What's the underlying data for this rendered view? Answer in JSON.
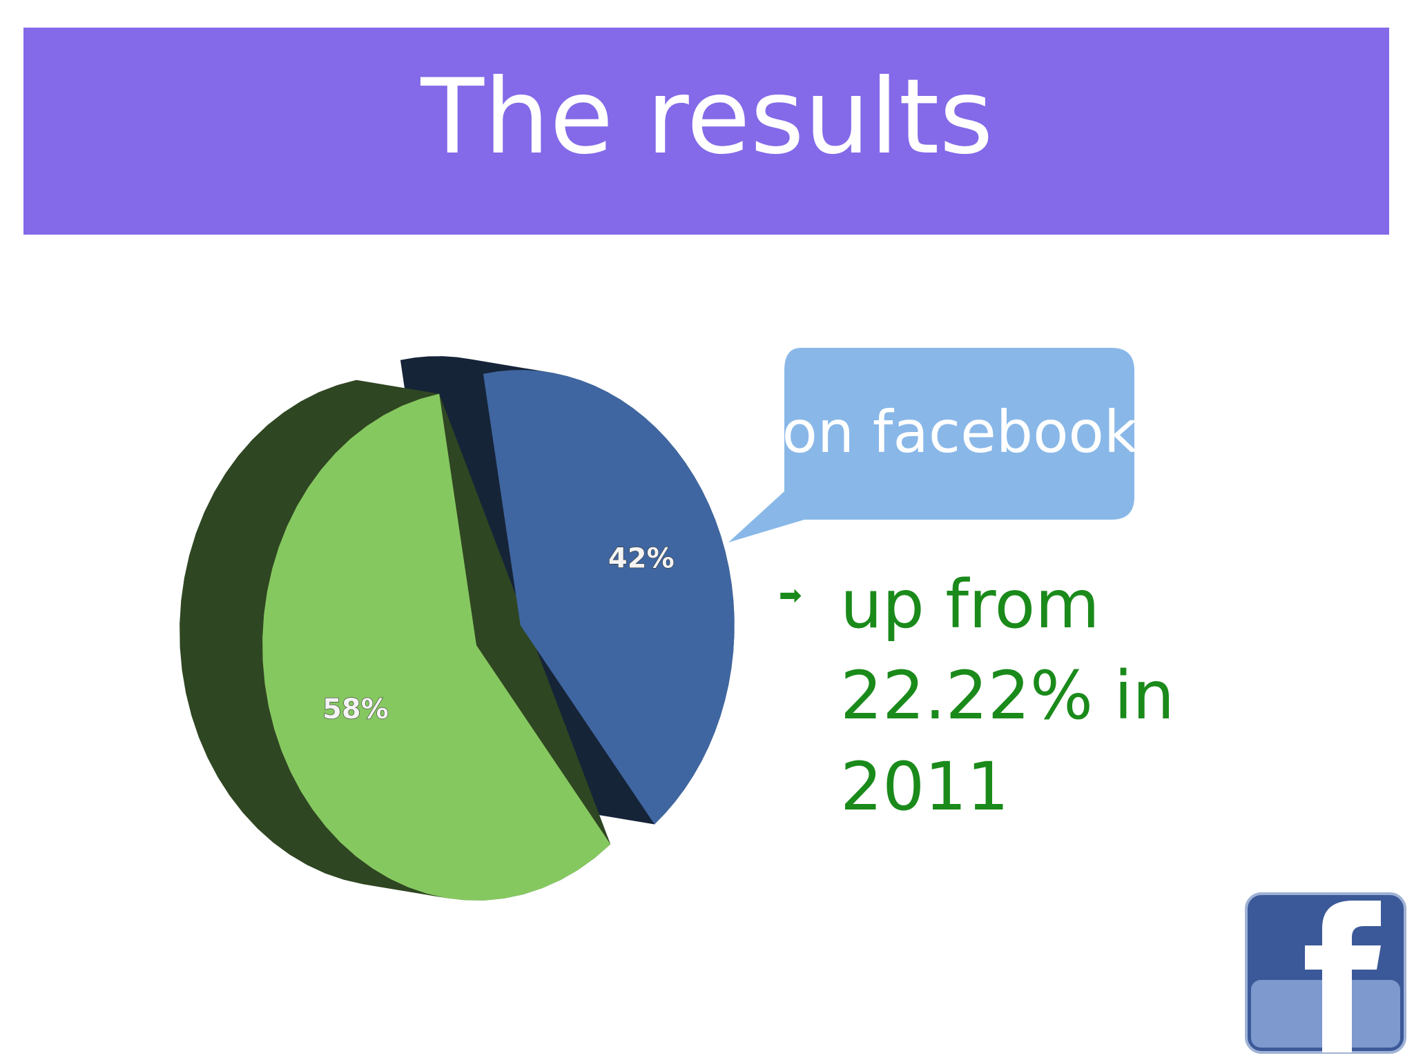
{
  "chart_data": {
    "type": "pie",
    "title": "The results",
    "values": [
      42,
      58
    ],
    "value_labels": [
      "42%",
      "58%"
    ],
    "colors": [
      "#3f66a0",
      "#86c860"
    ],
    "annotations": [
      "on facebook",
      "up from 22.22% in 2011"
    ]
  }
}
